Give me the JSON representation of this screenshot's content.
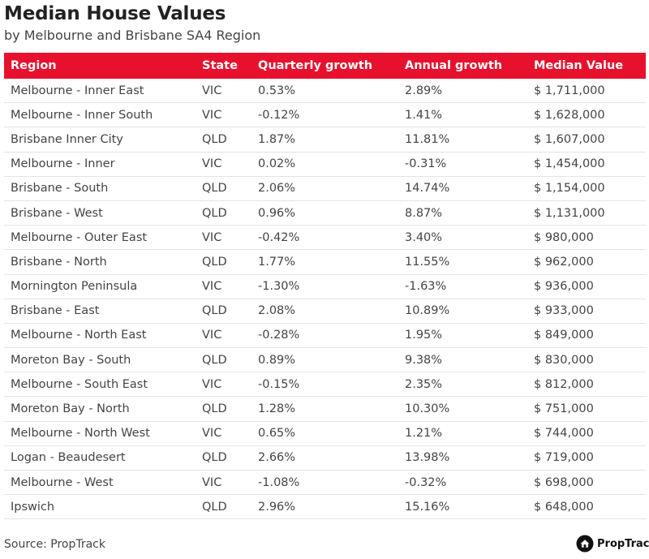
{
  "title": "Median House Values",
  "subtitle": "by Melbourne and Brisbane SA4 Region",
  "table": {
    "columns": [
      "Region",
      "State",
      "Quarterly growth",
      "Annual growth",
      "Median Value"
    ],
    "rows": [
      [
        "Melbourne - Inner East",
        "VIC",
        "0.53%",
        "2.89%",
        "$ 1,711,000"
      ],
      [
        "Melbourne - Inner South",
        "VIC",
        "-0.12%",
        "1.41%",
        "$ 1,628,000"
      ],
      [
        "Brisbane Inner City",
        "QLD",
        "1.87%",
        "11.81%",
        "$ 1,607,000"
      ],
      [
        "Melbourne - Inner",
        "VIC",
        "0.02%",
        "-0.31%",
        "$ 1,454,000"
      ],
      [
        "Brisbane - South",
        "QLD",
        "2.06%",
        "14.74%",
        "$ 1,154,000"
      ],
      [
        "Brisbane - West",
        "QLD",
        "0.96%",
        "8.87%",
        "$ 1,131,000"
      ],
      [
        "Melbourne - Outer East",
        "VIC",
        "-0.42%",
        "3.40%",
        "$ 980,000"
      ],
      [
        "Brisbane - North",
        "QLD",
        "1.77%",
        "11.55%",
        "$ 962,000"
      ],
      [
        "Mornington Peninsula",
        "VIC",
        "-1.30%",
        "-1.63%",
        "$ 936,000"
      ],
      [
        "Brisbane - East",
        "QLD",
        "2.08%",
        "10.89%",
        "$ 933,000"
      ],
      [
        "Melbourne - North East",
        "VIC",
        "-0.28%",
        "1.95%",
        "$ 849,000"
      ],
      [
        "Moreton Bay - South",
        "QLD",
        "0.89%",
        "9.38%",
        "$ 830,000"
      ],
      [
        "Melbourne - South East",
        "VIC",
        "-0.15%",
        "2.35%",
        "$ 812,000"
      ],
      [
        "Moreton Bay - North",
        "QLD",
        "1.28%",
        "10.30%",
        "$ 751,000"
      ],
      [
        "Melbourne - North West",
        "VIC",
        "0.65%",
        "1.21%",
        "$ 744,000"
      ],
      [
        "Logan - Beaudesert",
        "QLD",
        "2.66%",
        "13.98%",
        "$ 719,000"
      ],
      [
        "Melbourne - West",
        "VIC",
        "-1.08%",
        "-0.32%",
        "$ 698,000"
      ],
      [
        "Ipswich",
        "QLD",
        "2.96%",
        "15.16%",
        "$ 648,000"
      ]
    ]
  },
  "source": "Source: PropTrack",
  "brand": {
    "name": "PropTrack",
    "icon": "proptrack-logo-icon"
  },
  "colors": {
    "header_bg": "#e8112d",
    "header_text": "#ffffff",
    "row_divider": "#e4e4e4"
  }
}
